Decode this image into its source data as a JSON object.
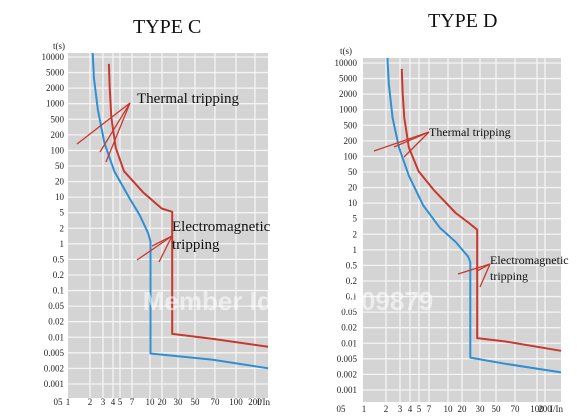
{
  "colors": {
    "background": "#ffffff",
    "plot_bg": "#d4d4d4",
    "grid": "#f4f4f4",
    "upper_curve": "#c8382e",
    "lower_curve": "#2f8fd4",
    "annotation_line": "#c8382e"
  },
  "watermark": "Member Id: 2003209879",
  "chart_data": [
    {
      "type": "line",
      "title": "TYPE C",
      "ylabel": "t(s)",
      "xunit": "I/In",
      "yscale": "log",
      "xscale": "log",
      "ylim": [
        0.001,
        10000
      ],
      "xlim": [
        0.5,
        300
      ],
      "grid": true,
      "yticks": [
        "10000",
        "5000",
        "2000",
        "1000",
        "500",
        "200",
        "100",
        "50",
        "20",
        "10",
        "5",
        "2",
        "1",
        "0.5",
        "0.2",
        "0.1",
        "0.05",
        "0.02",
        "0.01",
        "0.005",
        "0.002",
        "0.001"
      ],
      "xticks": [
        "05",
        "1",
        "2",
        "3",
        "4",
        "5",
        "7",
        "10",
        "20",
        "30",
        "50",
        "70",
        "100",
        "200"
      ],
      "series": [
        {
          "role": "lower",
          "points": [
            [
              1.1,
              10000
            ],
            [
              1.15,
              3000
            ],
            [
              1.3,
              700
            ],
            [
              1.6,
              150
            ],
            [
              2.2,
              40
            ],
            [
              3.5,
              12
            ],
            [
              5,
              5
            ],
            [
              6.5,
              2.2
            ],
            [
              7,
              1.5
            ],
            [
              7,
              0.008
            ],
            [
              50,
              0.006
            ],
            [
              300,
              0.004
            ]
          ]
        },
        {
          "role": "upper",
          "points": [
            [
              1.85,
              6000
            ],
            [
              1.9,
              2000
            ],
            [
              2,
              500
            ],
            [
              2.3,
              120
            ],
            [
              3,
              40
            ],
            [
              5.5,
              15
            ],
            [
              10,
              7
            ],
            [
              14,
              6
            ],
            [
              14,
              0.02
            ],
            [
              50,
              0.016
            ],
            [
              300,
              0.011
            ]
          ]
        }
      ],
      "annotations": [
        {
          "text": "Thermal tripping",
          "lines": [
            "Thermal tripping"
          ]
        },
        {
          "text": "Electromagnetic tripping",
          "lines": [
            "Electromagnetic",
            "tripping"
          ]
        }
      ]
    },
    {
      "type": "line",
      "title": "TYPE D",
      "ylabel": "t(s)",
      "xunit": "I/In",
      "yscale": "log",
      "xscale": "log",
      "ylim": [
        0.001,
        10000
      ],
      "xlim": [
        0.5,
        300
      ],
      "grid": true,
      "yticks": [
        "10000",
        "5000",
        "2000",
        "1000",
        "500",
        "200",
        "100",
        "50",
        "20",
        "10",
        "5",
        "2",
        "1",
        "0.5",
        "0.2",
        "0.1",
        "0.05",
        "0.02",
        "0.01",
        "0.005",
        "0.002",
        "0.001"
      ],
      "xticks": [
        "05",
        "1",
        "2",
        "3",
        "4",
        "5",
        "7",
        "10",
        "20",
        "30",
        "50",
        "70",
        "100",
        "200"
      ],
      "series": [
        {
          "role": "lower",
          "points": [
            [
              1.1,
              10000
            ],
            [
              1.15,
              3000
            ],
            [
              1.3,
              600
            ],
            [
              1.6,
              150
            ],
            [
              2.2,
              40
            ],
            [
              3.5,
              10
            ],
            [
              6,
              3.5
            ],
            [
              10,
              1.8
            ],
            [
              15,
              0.9
            ],
            [
              16,
              0.7
            ],
            [
              16,
              0.008
            ],
            [
              50,
              0.006
            ],
            [
              300,
              0.004
            ]
          ]
        },
        {
          "role": "upper",
          "points": [
            [
              1.75,
              6000
            ],
            [
              1.8,
              2000
            ],
            [
              1.9,
              600
            ],
            [
              2.2,
              150
            ],
            [
              3,
              50
            ],
            [
              5,
              20
            ],
            [
              10,
              7
            ],
            [
              15,
              4.5
            ],
            [
              20,
              3.2
            ],
            [
              20,
              0.02
            ],
            [
              50,
              0.017
            ],
            [
              300,
              0.011
            ]
          ]
        }
      ],
      "annotations": [
        {
          "text": "Thermal tripping",
          "lines": [
            "Thermal tripping"
          ]
        },
        {
          "text": "Electromagnetic tripping",
          "lines": [
            "Electromagnetic",
            "tripping"
          ]
        }
      ]
    }
  ]
}
